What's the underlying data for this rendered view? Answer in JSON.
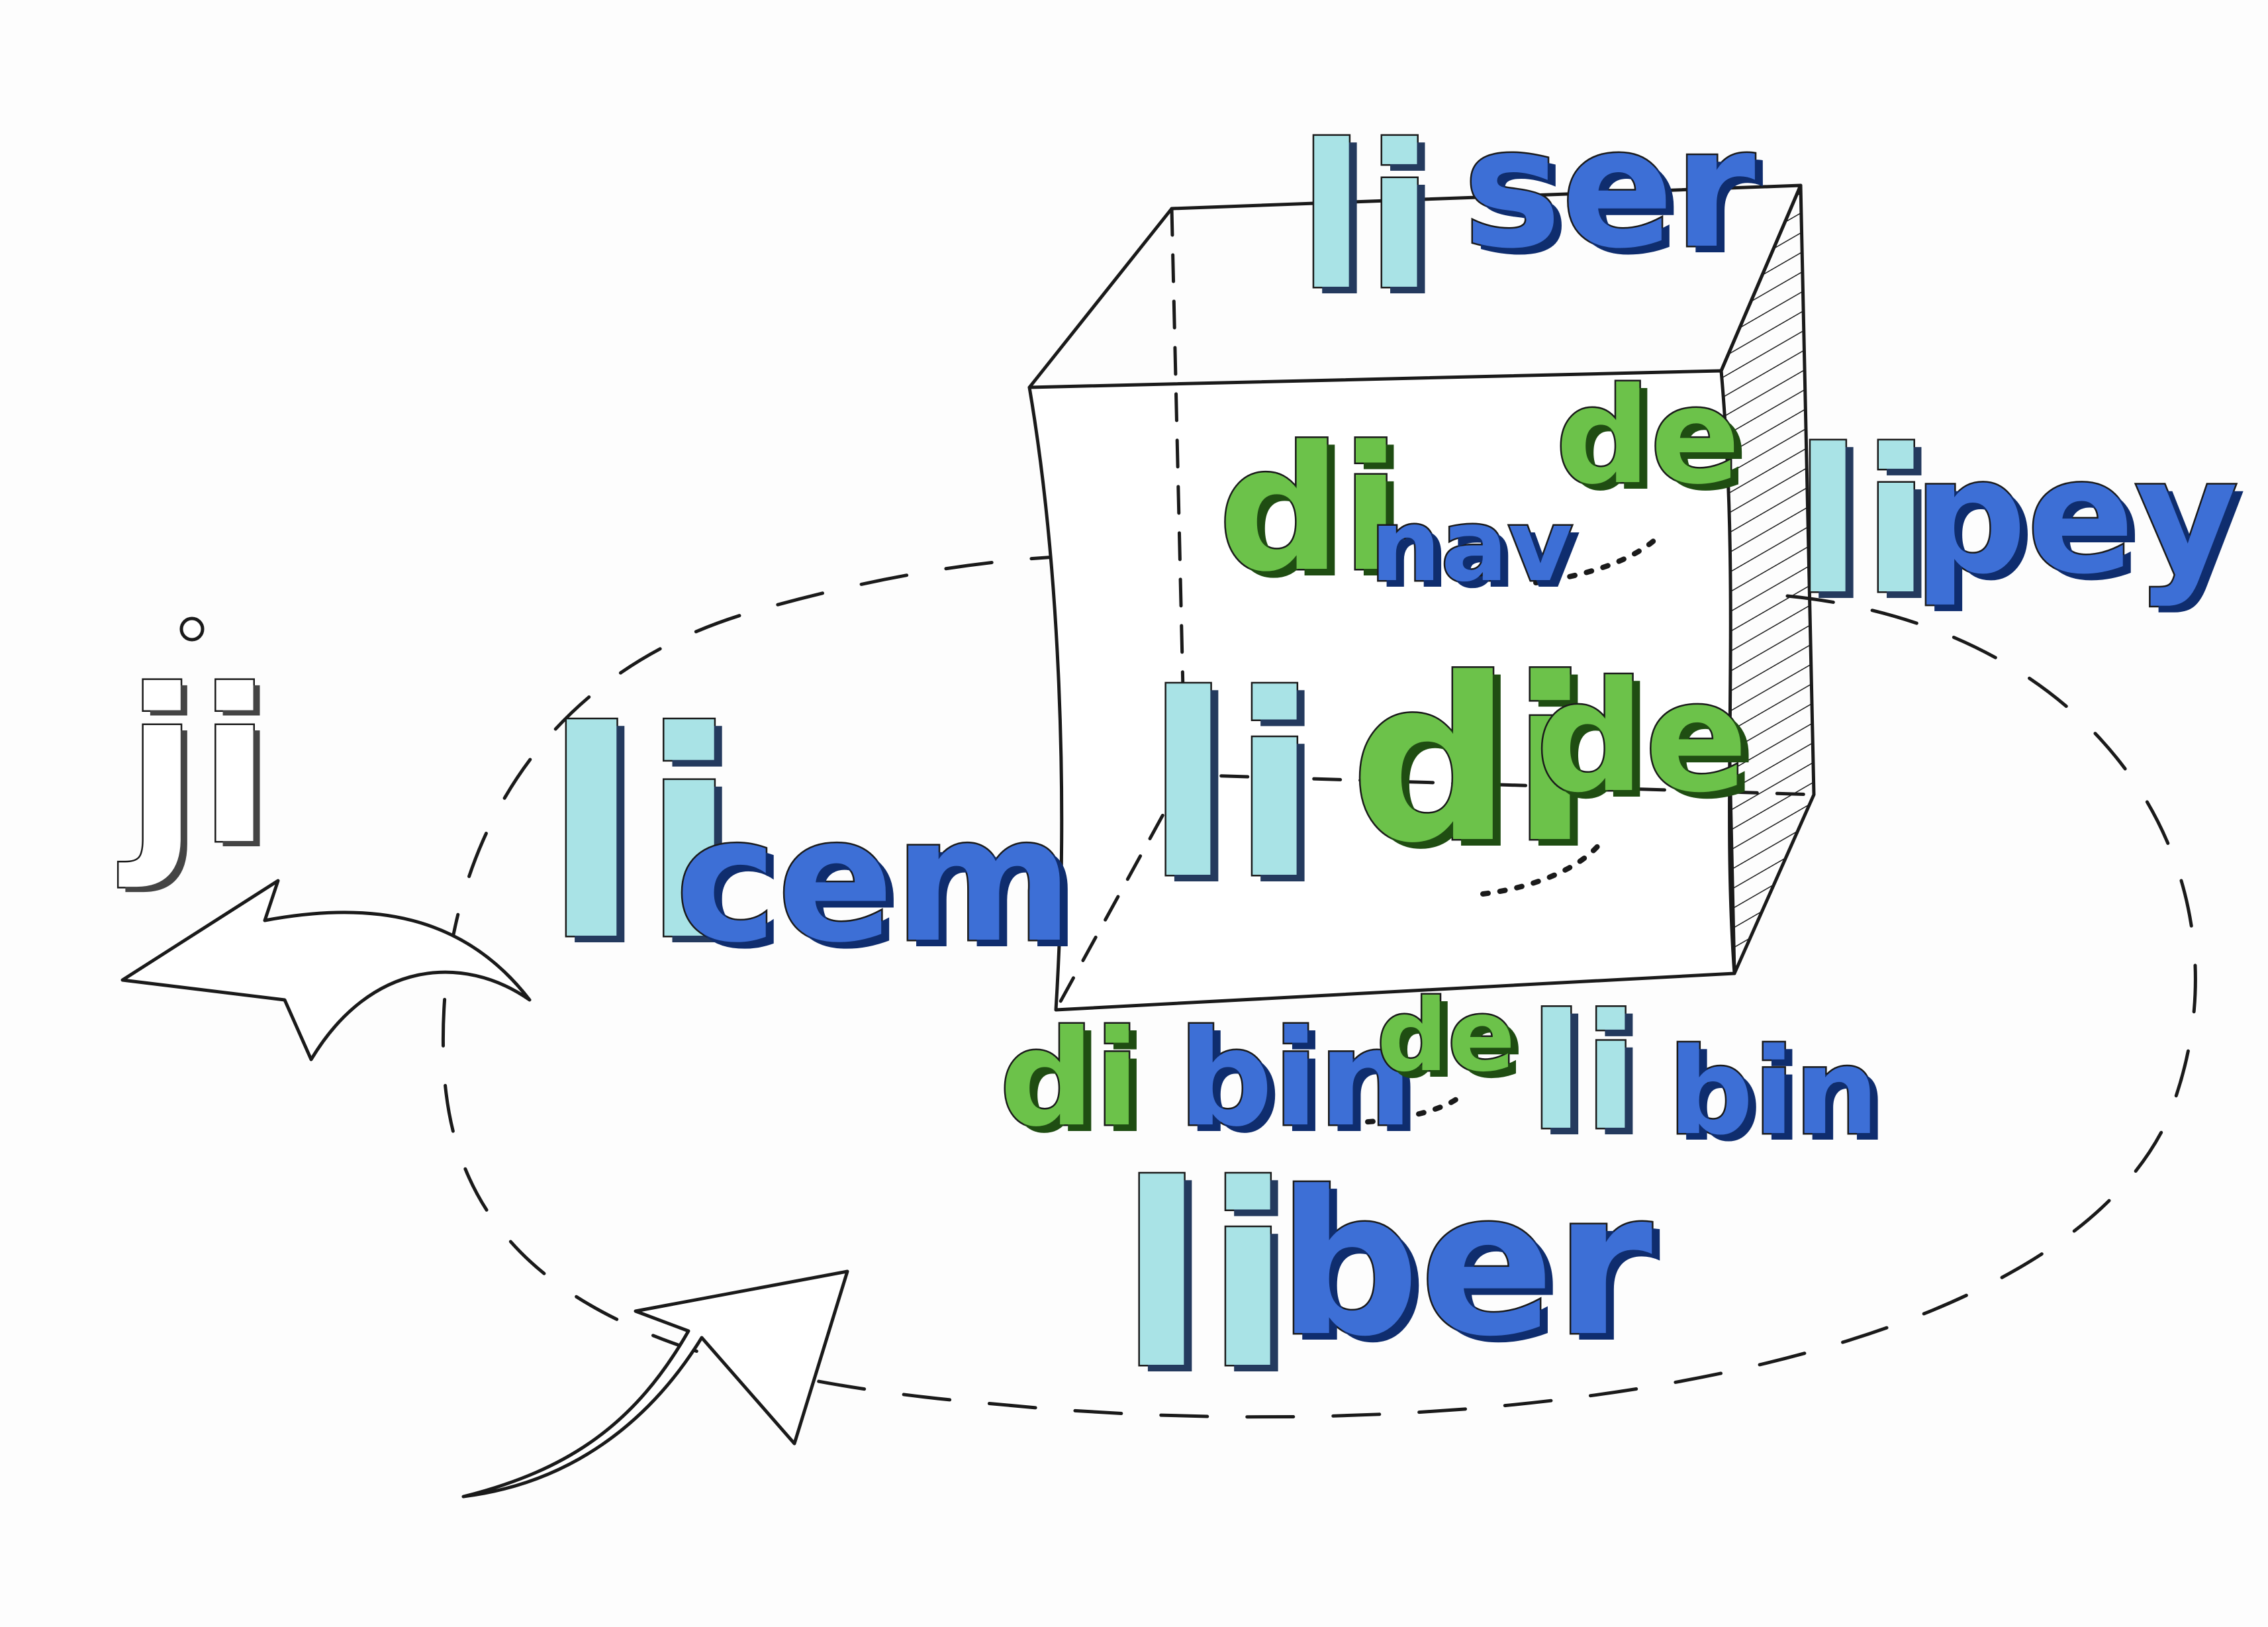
{
  "colors": {
    "ink": "#1a1a1a",
    "light": "#a9e3e6",
    "blue": "#3d6fd6",
    "green": "#6cc24a"
  },
  "words": {
    "ji": "ji",
    "li_cem_li": "li",
    "li_cem_cem": "cem",
    "li_ser_li": "li",
    "li_ser_ser": "ser",
    "li_pey_li": "li",
    "li_pey_pey": "pey",
    "di_nav_di": "di",
    "di_nav_nav": "nav",
    "di_nav_de": "de",
    "li_di_li": "li",
    "li_di_di": "di",
    "li_di_de": "de",
    "di_bin_di": "di",
    "di_bin_bin": "bin",
    "di_bin_de": "de",
    "li_bin_li": "li",
    "li_bin_bin": "bin",
    "li_ber_li": "li",
    "li_ber_ber": "ber"
  }
}
